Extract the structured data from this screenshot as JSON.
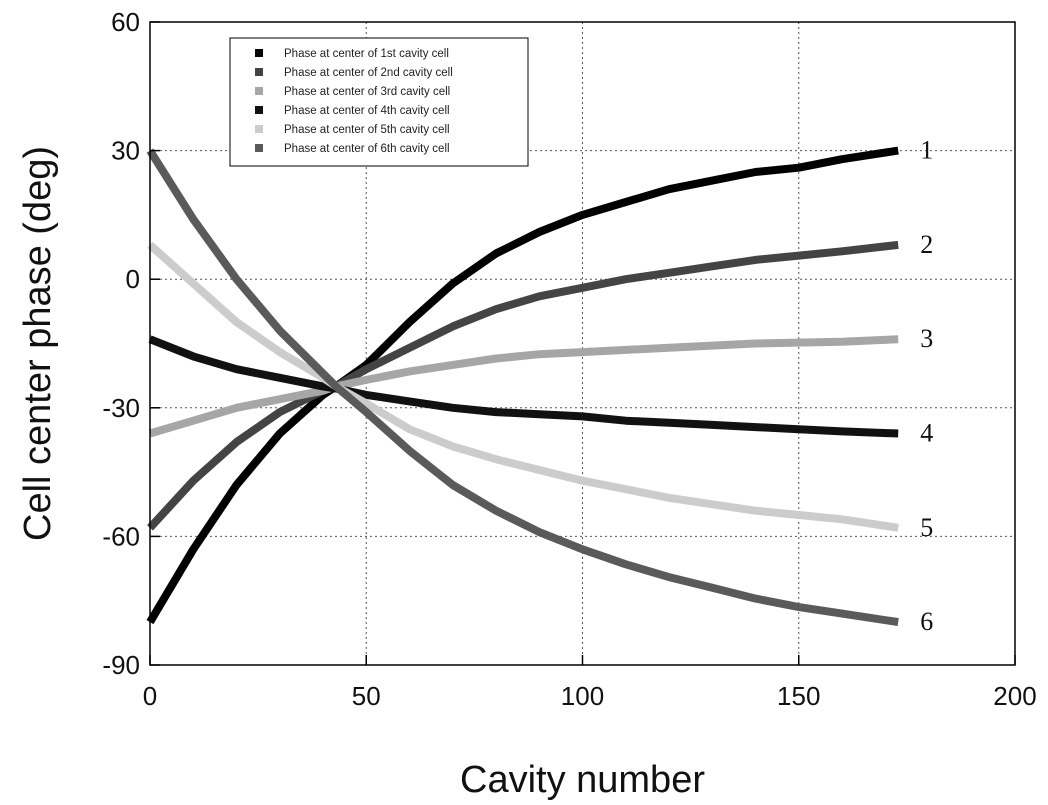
{
  "chart_data": {
    "type": "line",
    "title": "",
    "xlabel": "Cavity number",
    "ylabel": "Cell center phase (deg)",
    "xlim": [
      0,
      200
    ],
    "ylim": [
      -90,
      60
    ],
    "xticks": [
      0,
      50,
      100,
      150,
      200
    ],
    "yticks": [
      -90,
      -60,
      -30,
      0,
      30,
      60
    ],
    "grid": true,
    "legend_position": "top-left",
    "x": [
      0,
      10,
      20,
      30,
      40,
      43,
      50,
      60,
      70,
      80,
      90,
      100,
      110,
      120,
      130,
      140,
      150,
      160,
      173
    ],
    "series": [
      {
        "name": "Phase at center of 1st cavity cell",
        "end_label": "1",
        "color": "#000000",
        "values": [
          -80,
          -63,
          -48,
          -36,
          -27,
          -25,
          -20,
          -10,
          -1,
          6,
          11,
          15,
          18,
          21,
          23,
          25,
          26,
          28,
          30
        ]
      },
      {
        "name": "Phase at center of 2nd cavity cell",
        "end_label": "2",
        "color": "#444444",
        "values": [
          -58,
          -47,
          -38,
          -31,
          -26,
          -25,
          -21,
          -16,
          -11,
          -7,
          -4,
          -2,
          0,
          1.5,
          3,
          4.5,
          5.5,
          6.5,
          8
        ]
      },
      {
        "name": "Phase at center of 3rd cavity cell",
        "end_label": "3",
        "color": "#a6a6a6",
        "values": [
          -36,
          -33,
          -30,
          -28,
          -26,
          -25,
          -23.5,
          -21.5,
          -20,
          -18.5,
          -17.5,
          -17,
          -16.5,
          -16,
          -15.5,
          -15,
          -14.8,
          -14.6,
          -14
        ]
      },
      {
        "name": "Phase at center of 4th cavity cell",
        "end_label": "4",
        "color": "#111111",
        "values": [
          -14,
          -18,
          -21,
          -23,
          -25,
          -25.5,
          -27,
          -28.5,
          -30,
          -31,
          -31.5,
          -32,
          -33,
          -33.5,
          -34,
          -34.5,
          -35,
          -35.5,
          -36
        ]
      },
      {
        "name": "Phase at center of 5th cavity cell",
        "end_label": "5",
        "color": "#cccccc",
        "values": [
          8,
          -1,
          -10,
          -17,
          -23,
          -25,
          -29,
          -35,
          -39,
          -42,
          -44.5,
          -47,
          -49,
          -51,
          -52.5,
          -54,
          -55,
          -56,
          -58
        ]
      },
      {
        "name": "Phase at center of 6th cavity cell",
        "end_label": "6",
        "color": "#5a5a5a",
        "values": [
          30,
          14,
          0,
          -12,
          -22,
          -25,
          -31,
          -40,
          -48,
          -54,
          -59,
          -63,
          -66.5,
          -69.5,
          -72,
          -74.5,
          -76.5,
          -78,
          -80
        ]
      }
    ]
  }
}
